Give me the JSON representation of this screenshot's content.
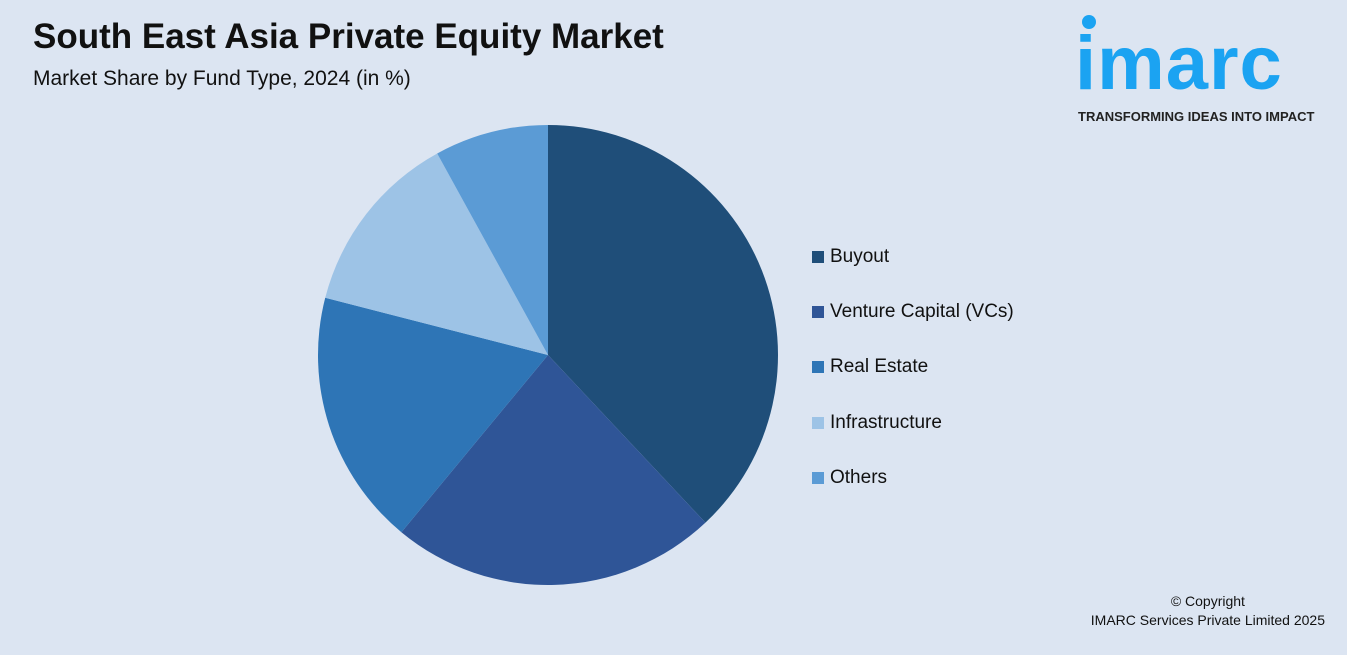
{
  "header": {
    "title": "South East Asia Private Equity Market",
    "subtitle": "Market Share by Fund Type, 2024 (in %)"
  },
  "logo": {
    "text": "imarc",
    "tagline": "TRANSFORMING IDEAS INTO IMPACT",
    "color": "#1ba3f2"
  },
  "chart_data": {
    "type": "pie",
    "title": "South East Asia Private Equity Market",
    "subtitle": "Market Share by Fund Type, 2024 (in %)",
    "categories": [
      "Buyout",
      "Venture Capital (VCs)",
      "Real Estate",
      "Infrastructure",
      "Others"
    ],
    "values": [
      38,
      23,
      18,
      13,
      8
    ],
    "colors": [
      "#1f4e79",
      "#2f5597",
      "#2e75b6",
      "#9dc3e6",
      "#5b9bd5"
    ],
    "legend_position": "right",
    "start": "top, clockwise"
  },
  "footer": {
    "copyright": "© Copyright",
    "company": "IMARC Services Private Limited 2025"
  }
}
